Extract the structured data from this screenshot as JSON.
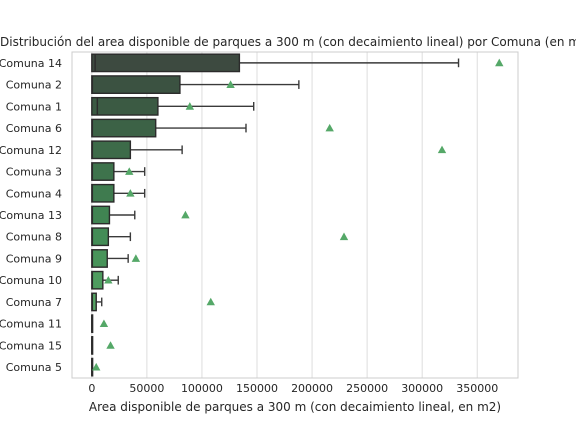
{
  "chart_data": {
    "type": "bar",
    "title": "Distribución del area disponible de parques a 300 m (con decaimiento lineal) por Comuna (en m2)",
    "xlabel": "Area disponible de parques a 300 m (con decaimiento lineal, en m2)",
    "ylabel": "",
    "xlim": [
      -18000,
      387000
    ],
    "xticks": [
      0,
      50000,
      100000,
      150000,
      200000,
      250000,
      300000,
      350000
    ],
    "xtick_labels": [
      "0",
      "50000",
      "100000",
      "150000",
      "200000",
      "250000",
      "300000",
      "350000"
    ],
    "grid": true,
    "categories": [
      "Comuna 14",
      "Comuna 2",
      "Comuna 1",
      "Comuna 6",
      "Comuna 12",
      "Comuna 3",
      "Comuna 4",
      "Comuna 13",
      "Comuna 8",
      "Comuna 9",
      "Comuna 10",
      "Comuna 7",
      "Comuna 11",
      "Comuna 15",
      "Comuna 5"
    ],
    "boxes": [
      {
        "q1": 0,
        "median": 3000,
        "q3": 134000,
        "whisker_low": 0,
        "whisker_high": 333000,
        "mean": 370000,
        "color": "#3d4a40"
      },
      {
        "q1": 0,
        "median": 500,
        "q3": 80000,
        "whisker_low": 0,
        "whisker_high": 188000,
        "mean": 126000,
        "color": "#3b5241"
      },
      {
        "q1": 0,
        "median": 5000,
        "q3": 60000,
        "whisker_low": 0,
        "whisker_high": 147000,
        "mean": 89000,
        "color": "#3b5a43"
      },
      {
        "q1": 0,
        "median": 500,
        "q3": 58000,
        "whisker_low": 0,
        "whisker_high": 140000,
        "mean": 216000,
        "color": "#3c6246"
      },
      {
        "q1": 0,
        "median": 500,
        "q3": 35000,
        "whisker_low": 0,
        "whisker_high": 82000,
        "mean": 318000,
        "color": "#3d6b49"
      },
      {
        "q1": 0,
        "median": 500,
        "q3": 20000,
        "whisker_low": 0,
        "whisker_high": 48000,
        "mean": 34000,
        "color": "#3e734c"
      },
      {
        "q1": 0,
        "median": 500,
        "q3": 20000,
        "whisker_low": 0,
        "whisker_high": 48000,
        "mean": 35000,
        "color": "#3f7b4f"
      },
      {
        "q1": 0,
        "median": 500,
        "q3": 16000,
        "whisker_low": 0,
        "whisker_high": 39000,
        "mean": 85000,
        "color": "#408452"
      },
      {
        "q1": 0,
        "median": 500,
        "q3": 15000,
        "whisker_low": 0,
        "whisker_high": 35000,
        "mean": 229000,
        "color": "#438c56"
      },
      {
        "q1": 0,
        "median": 500,
        "q3": 14000,
        "whisker_low": 0,
        "whisker_high": 33000,
        "mean": 40000,
        "color": "#48945a"
      },
      {
        "q1": 0,
        "median": 500,
        "q3": 10000,
        "whisker_low": 0,
        "whisker_high": 24000,
        "mean": 15000,
        "color": "#4e9c5f"
      },
      {
        "q1": 0,
        "median": 500,
        "q3": 4000,
        "whisker_low": 0,
        "whisker_high": 9000,
        "mean": 108000,
        "color": "#55a464"
      },
      {
        "q1": 0,
        "median": 0,
        "q3": 500,
        "whisker_low": 0,
        "whisker_high": 500,
        "mean": 11000,
        "color": "#5cab69"
      },
      {
        "q1": 0,
        "median": 0,
        "q3": 0,
        "whisker_low": 0,
        "whisker_high": 0,
        "mean": 17000,
        "color": "#62b06e"
      },
      {
        "q1": 0,
        "median": 0,
        "q3": 0,
        "whisker_low": 0,
        "whisker_high": 0,
        "mean": 4000,
        "color": "#68b573"
      }
    ],
    "mean_marker_color": "#55a868"
  }
}
